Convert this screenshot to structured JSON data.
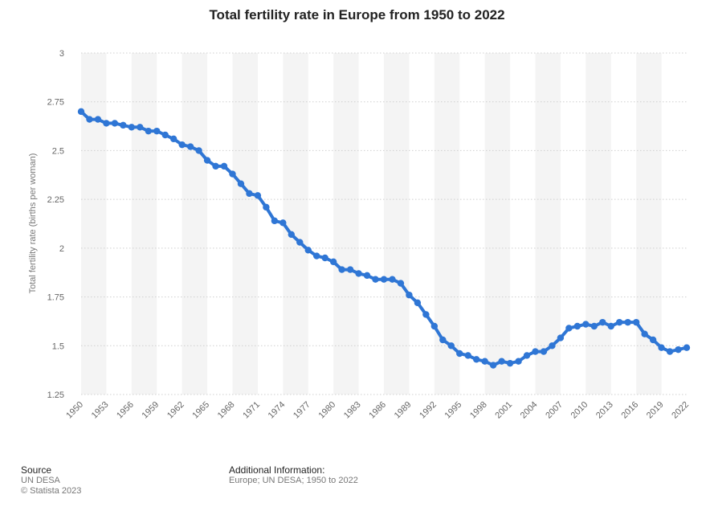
{
  "chart_data": {
    "type": "line",
    "title": "Total fertility rate in Europe from 1950 to 2022",
    "xlabel": "",
    "ylabel": "Total fertility rate (births per woman)",
    "ylim": [
      1.25,
      3
    ],
    "yticks": [
      "1.25",
      "1.5",
      "1.75",
      "2",
      "2.25",
      "2.5",
      "2.75",
      "3"
    ],
    "xticks": [
      "1950",
      "1953",
      "1956",
      "1959",
      "1962",
      "1965",
      "1968",
      "1971",
      "1974",
      "1977",
      "1980",
      "1983",
      "1986",
      "1989",
      "1992",
      "1995",
      "1998",
      "2001",
      "2004",
      "2007",
      "2010",
      "2013",
      "2016",
      "2019",
      "2022"
    ],
    "grid": true,
    "color": "#2f76d5",
    "series": [
      {
        "name": "Total fertility rate",
        "x": [
          1950,
          1951,
          1952,
          1953,
          1954,
          1955,
          1956,
          1957,
          1958,
          1959,
          1960,
          1961,
          1962,
          1963,
          1964,
          1965,
          1966,
          1967,
          1968,
          1969,
          1970,
          1971,
          1972,
          1973,
          1974,
          1975,
          1976,
          1977,
          1978,
          1979,
          1980,
          1981,
          1982,
          1983,
          1984,
          1985,
          1986,
          1987,
          1988,
          1989,
          1990,
          1991,
          1992,
          1993,
          1994,
          1995,
          1996,
          1997,
          1998,
          1999,
          2000,
          2001,
          2002,
          2003,
          2004,
          2005,
          2006,
          2007,
          2008,
          2009,
          2010,
          2011,
          2012,
          2013,
          2014,
          2015,
          2016,
          2017,
          2018,
          2019,
          2020,
          2021,
          2022
        ],
        "values": [
          2.7,
          2.66,
          2.66,
          2.64,
          2.64,
          2.63,
          2.62,
          2.62,
          2.6,
          2.6,
          2.58,
          2.56,
          2.53,
          2.52,
          2.5,
          2.45,
          2.42,
          2.42,
          2.38,
          2.33,
          2.28,
          2.27,
          2.21,
          2.14,
          2.13,
          2.07,
          2.03,
          1.99,
          1.96,
          1.95,
          1.93,
          1.89,
          1.89,
          1.87,
          1.86,
          1.84,
          1.84,
          1.84,
          1.82,
          1.76,
          1.72,
          1.66,
          1.6,
          1.53,
          1.5,
          1.46,
          1.45,
          1.43,
          1.42,
          1.4,
          1.42,
          1.41,
          1.42,
          1.45,
          1.47,
          1.47,
          1.5,
          1.54,
          1.59,
          1.6,
          1.61,
          1.6,
          1.62,
          1.6,
          1.62,
          1.62,
          1.62,
          1.56,
          1.53,
          1.49,
          1.47,
          1.48,
          1.49
        ]
      }
    ]
  },
  "footer": {
    "source_heading": "Source",
    "source_lines": [
      "UN DESA",
      "© Statista 2023"
    ],
    "additional_heading": "Additional Information:",
    "additional_text": "Europe; UN DESA; 1950 to 2022"
  }
}
